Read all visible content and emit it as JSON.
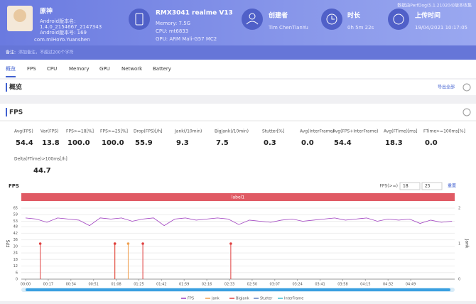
{
  "header": {
    "app_name": "原神",
    "version_name_label": "Android版本名:",
    "version_name": "1.4.0_2154667_2147343",
    "version_code": "Android版本号: 169",
    "package": "com.miHoYo.Yuanshen",
    "device": "RMX3041 realme V13",
    "memory": "Memory: 7.5G",
    "cpu": "CPU: mt6833",
    "gpu": "GPU: ARM Mali-G57 MC2",
    "creator_label": "创建者",
    "creator": "Tim ChenTianYu",
    "duration_label": "时长",
    "duration": "0h 5m 22s",
    "upload_label": "上传时间",
    "upload_time": "19/04/2021 10:17:05",
    "source": "数据由PerfDog(5.1.210204)版本收集"
  },
  "note": {
    "label": "备注:",
    "placeholder": "添加备注，不超过200个字符"
  },
  "tabs": [
    "概览",
    "FPS",
    "CPU",
    "Memory",
    "GPU",
    "Network",
    "Battery"
  ],
  "overview": {
    "title": "概览",
    "export": "导出全部"
  },
  "fps_section": {
    "title": "FPS",
    "metrics": [
      {
        "label": "Avg(FPS)",
        "value": "54.4"
      },
      {
        "label": "Var(FPS)",
        "value": "13.8"
      },
      {
        "label": "FPS>=18[%]",
        "value": "100.0"
      },
      {
        "label": "FPS>=25[%]",
        "value": "100.0"
      },
      {
        "label": "Drop(FPS)[/h]",
        "value": "55.9"
      },
      {
        "label": "Jank(/10min)",
        "value": "9.3"
      },
      {
        "label": "BigJank(/10min)",
        "value": "7.5"
      },
      {
        "label": "Stutter[%]",
        "value": "0.3"
      },
      {
        "label": "Avg(InterFrame)",
        "value": "0.0"
      },
      {
        "label": "Avg(FPS+InterFrame)",
        "value": "54.4"
      },
      {
        "label": "Avg(FTime)[ms]",
        "value": "18.3"
      },
      {
        "label": "FTime>=100ms[%]",
        "value": "0.0"
      },
      {
        "label": "Delta(FTime)>100ms[/h]",
        "value": "44.7"
      }
    ]
  },
  "chart": {
    "type": "line",
    "title": "FPS",
    "threshold_label": "FPS(>=)",
    "threshold_1": "18",
    "threshold_2": "25",
    "reset": "重置",
    "label_bar": "label1",
    "y2_label": "Jank",
    "xlim": [
      0,
      322
    ],
    "ylim": [
      0,
      65
    ],
    "y2lim": [
      0,
      2
    ],
    "yticks": [
      0,
      6,
      12,
      18,
      24,
      30,
      36,
      42,
      48,
      53,
      59,
      65
    ],
    "y2ticks": [
      0,
      1,
      2
    ],
    "xticks": [
      {
        "value": 0,
        "label": "00:00"
      },
      {
        "value": 17,
        "label": "00:17"
      },
      {
        "value": 34,
        "label": "00:34"
      },
      {
        "value": 51,
        "label": "00:51"
      },
      {
        "value": 68,
        "label": "01:08"
      },
      {
        "value": 85,
        "label": "01:25"
      },
      {
        "value": 102,
        "label": "01:42"
      },
      {
        "value": 119,
        "label": "01:59"
      },
      {
        "value": 136,
        "label": "02:16"
      },
      {
        "value": 153,
        "label": "02:33"
      },
      {
        "value": 170,
        "label": "02:50"
      },
      {
        "value": 187,
        "label": "03:07"
      },
      {
        "value": 204,
        "label": "03:24"
      },
      {
        "value": 221,
        "label": "03:41"
      },
      {
        "value": 238,
        "label": "03:58"
      },
      {
        "value": 255,
        "label": "04:15"
      },
      {
        "value": 272,
        "label": "04:32"
      },
      {
        "value": 289,
        "label": "04:49"
      }
    ],
    "series": [
      {
        "name": "FPS",
        "color": "#a040c0",
        "x": [
          0,
          8,
          16,
          24,
          32,
          40,
          48,
          56,
          64,
          72,
          80,
          88,
          96,
          104,
          112,
          120,
          128,
          136,
          144,
          152,
          160,
          168,
          176,
          184,
          192,
          200,
          208,
          216,
          224,
          232,
          240,
          248,
          256,
          264,
          272,
          280,
          288,
          296,
          304,
          312,
          320
        ],
        "values": [
          56,
          55,
          52,
          56,
          55,
          54,
          49,
          56,
          55,
          56,
          53,
          55,
          56,
          49,
          55,
          56,
          54,
          55,
          56,
          55,
          50,
          54,
          53,
          52,
          54,
          55,
          53,
          54,
          55,
          56,
          54,
          55,
          56,
          53,
          55,
          54,
          55,
          51,
          54,
          52,
          53
        ]
      },
      {
        "name": "Jank",
        "color": "#f0a050",
        "axis": "y2",
        "x": [
          67,
          77
        ],
        "values": [
          1,
          1
        ]
      },
      {
        "name": "BigJank",
        "color": "#e04040",
        "axis": "y2",
        "x": [
          11,
          67,
          88,
          154
        ],
        "values": [
          1,
          1,
          1,
          1
        ]
      },
      {
        "name": "Stutter",
        "color": "#6080c0",
        "x": [],
        "values": []
      },
      {
        "name": "InterFrame",
        "color": "#40c0d0",
        "x": [],
        "values": []
      }
    ]
  }
}
